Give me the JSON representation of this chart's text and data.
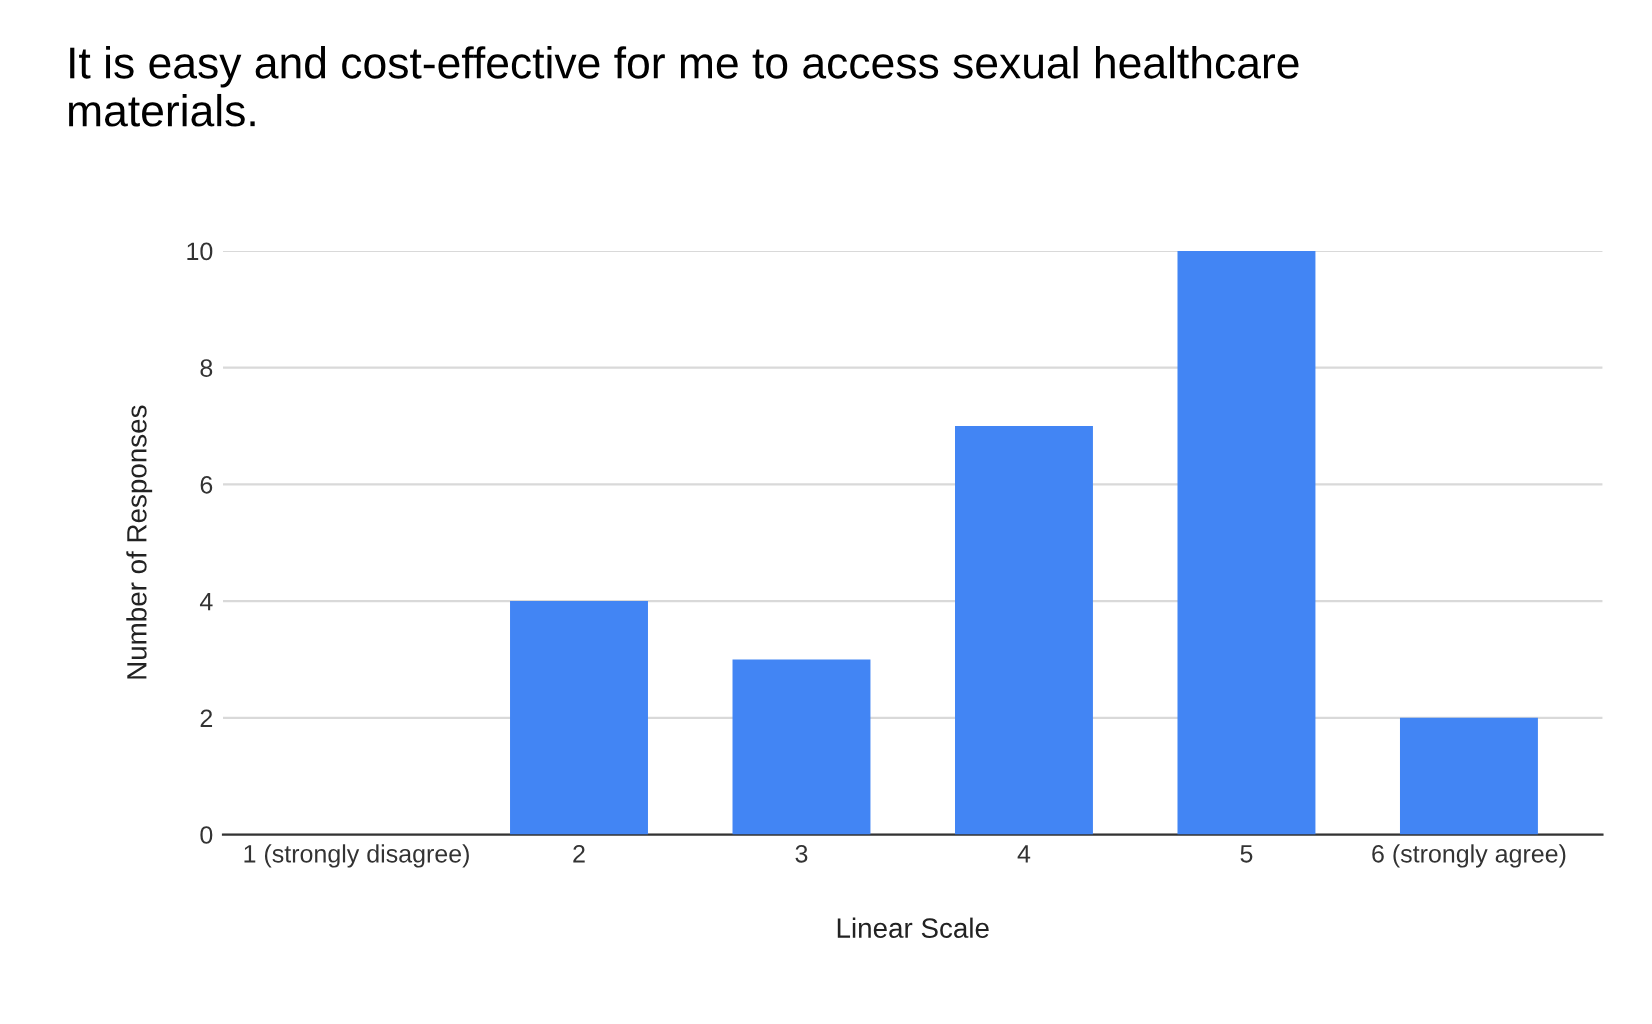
{
  "chart_data": {
    "type": "bar",
    "title": "It is easy and cost-effective for me to access sexual healthcare\nmaterials.",
    "xlabel": "Linear Scale",
    "ylabel": "Number of Responses",
    "categories": [
      "1 (strongly disagree)",
      "2",
      "3",
      "4",
      "5",
      "6 (strongly agree)"
    ],
    "values": [
      0,
      4,
      3,
      7,
      10,
      2
    ],
    "color": "#4285f4",
    "ylim": [
      0,
      10
    ],
    "yticks": [
      0,
      2,
      4,
      6,
      8,
      10
    ],
    "grid": "y",
    "legend": false
  }
}
